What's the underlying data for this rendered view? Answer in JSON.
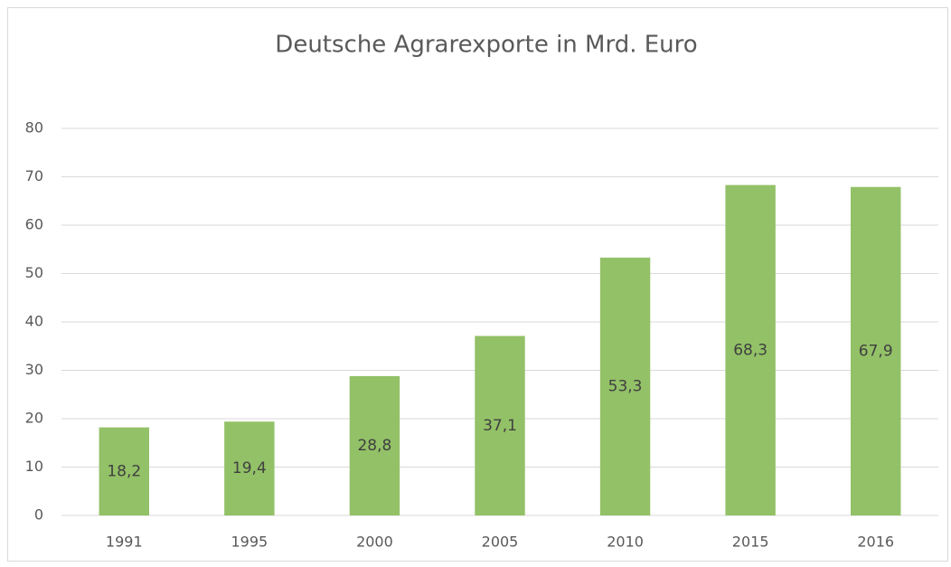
{
  "chart_data": {
    "type": "bar",
    "title": "Deutsche Agrarexporte in Mrd. Euro",
    "categories": [
      "1991",
      "1995",
      "2000",
      "2005",
      "2010",
      "2015",
      "2016"
    ],
    "values": [
      18.2,
      19.4,
      28.8,
      37.1,
      53.3,
      68.3,
      67.9
    ],
    "value_labels": [
      "18,2",
      "19,4",
      "28,8",
      "37,1",
      "53,3",
      "68,3",
      "67,9"
    ],
    "color": "#93c167",
    "ylim": [
      0,
      80
    ],
    "yticks": [
      0,
      10,
      20,
      30,
      40,
      50,
      60,
      70,
      80
    ],
    "grid": true
  }
}
